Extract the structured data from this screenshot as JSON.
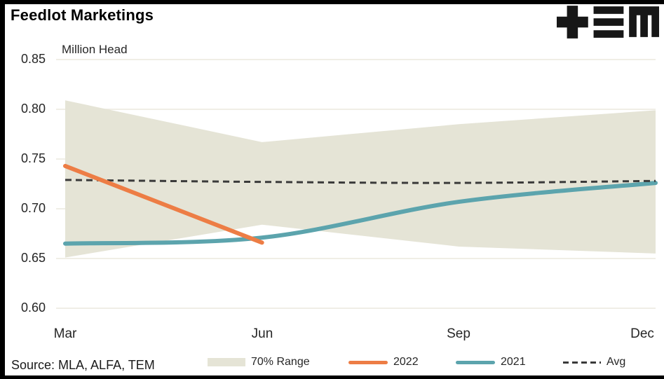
{
  "header": {
    "title": "Feedlot Marketings",
    "logo_name": "TEM"
  },
  "chart_data": {
    "type": "line",
    "title": "Feedlot Marketings",
    "ylabel": "Million Head",
    "xlabel": "",
    "x_categories": [
      "Mar",
      "Jun",
      "Sep",
      "Dec"
    ],
    "ylim": [
      0.6,
      0.85
    ],
    "yticks": [
      0.85,
      0.8,
      0.75,
      0.7,
      0.65,
      0.6
    ],
    "ytick_labels": [
      "0.85",
      "0.80",
      "0.75",
      "0.70",
      "0.65",
      "0.60"
    ],
    "grid": true,
    "grid_color": "#ece8dd",
    "legend_position": "bottom",
    "band": {
      "name": "70% Range",
      "color": "#e5e4d6",
      "top": [
        0.809,
        0.767,
        0.785,
        0.799
      ],
      "bottom": [
        0.651,
        0.684,
        0.662,
        0.655
      ]
    },
    "series": [
      {
        "name": "2021",
        "color": "#5ca4ad",
        "style": "solid",
        "values": [
          0.665,
          0.671,
          0.707,
          0.726
        ]
      },
      {
        "name": "Avg",
        "color": "#3a3a3a",
        "style": "dashed",
        "values": [
          0.729,
          0.727,
          0.726,
          0.728
        ]
      },
      {
        "name": "2022",
        "color": "#ed7d45",
        "style": "solid",
        "values": [
          0.743,
          0.666,
          null,
          null
        ]
      }
    ]
  },
  "footer": {
    "source": "Source: MLA, ALFA, TEM"
  }
}
